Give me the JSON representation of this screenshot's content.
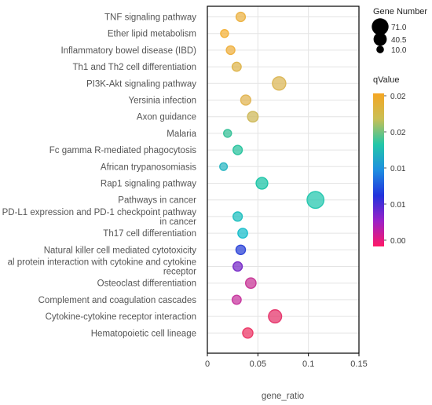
{
  "chart_data": {
    "type": "scatter",
    "title": "",
    "xlabel": "gene_ratio",
    "ylabel": "",
    "xlim": [
      0,
      0.15
    ],
    "x_ticks": [
      0,
      0.05,
      0.1,
      0.15
    ],
    "x_tick_labels": [
      "0",
      "0.05",
      "0.1",
      "0.15"
    ],
    "grid": true,
    "categories": [
      "TNF signaling pathway",
      "Ether lipid metabolism",
      "Inflammatory bowel disease (IBD)",
      "Th1 and Th2 cell differentiation",
      "PI3K-Akt signaling pathway",
      "Yersinia infection",
      "Axon guidance",
      "Malaria",
      "Fc gamma R-mediated phagocytosis",
      "African trypanosomiasis",
      "Rap1 signaling pathway",
      "Pathways in cancer",
      "PD-L1 expression and PD-1 checkpoint pathway in cancer",
      "Th17 cell differentiation",
      "Natural killer cell mediated cytotoxicity",
      "Viral protein interaction with cytokine and cytokine receptor",
      "Osteoclast differentiation",
      "Complement and coagulation cascades",
      "Cytokine-cytokine receptor interaction",
      "Hematopoietic cell lineage"
    ],
    "category_labels": [
      [
        "TNF signaling pathway"
      ],
      [
        "Ether lipid metabolism"
      ],
      [
        "Inflammatory bowel disease (IBD)"
      ],
      [
        "Th1 and Th2 cell differentiation"
      ],
      [
        "PI3K-Akt signaling pathway"
      ],
      [
        "Yersinia infection"
      ],
      [
        "Axon guidance"
      ],
      [
        "Malaria"
      ],
      [
        "Fc gamma R-mediated phagocytosis"
      ],
      [
        "African trypanosomiasis"
      ],
      [
        "Rap1 signaling pathway"
      ],
      [
        "Pathways in cancer"
      ],
      [
        "PD-L1 expression and PD-1 checkpoint pathway",
        "in cancer"
      ],
      [
        "Th17 cell differentiation"
      ],
      [
        "Natural killer cell mediated cytotoxicity"
      ],
      [
        "al protein interaction with cytokine and cytokine",
        "receptor"
      ],
      [
        "Osteoclast differentiation"
      ],
      [
        "Complement and coagulation cascades"
      ],
      [
        "Cytokine-cytokine receptor interaction"
      ],
      [
        "Hematopoietic cell lineage"
      ]
    ],
    "points": [
      {
        "x": 0.033,
        "gene_number": 17,
        "color": "#ecb448"
      },
      {
        "x": 0.017,
        "gene_number": 11,
        "color": "#f4b33c"
      },
      {
        "x": 0.023,
        "gene_number": 14,
        "color": "#efb243"
      },
      {
        "x": 0.029,
        "gene_number": 16,
        "color": "#dfb752"
      },
      {
        "x": 0.071,
        "gene_number": 42,
        "color": "#dcb85a"
      },
      {
        "x": 0.038,
        "gene_number": 21,
        "color": "#e2b656"
      },
      {
        "x": 0.045,
        "gene_number": 24,
        "color": "#cfba5c"
      },
      {
        "x": 0.02,
        "gene_number": 11,
        "color": "#39c29a"
      },
      {
        "x": 0.03,
        "gene_number": 17,
        "color": "#2ec4a0"
      },
      {
        "x": 0.016,
        "gene_number": 10,
        "color": "#2fb8c4"
      },
      {
        "x": 0.054,
        "gene_number": 30,
        "color": "#1fc6a8"
      },
      {
        "x": 0.107,
        "gene_number": 71,
        "color": "#28c8b0"
      },
      {
        "x": 0.03,
        "gene_number": 17,
        "color": "#24c0c0"
      },
      {
        "x": 0.035,
        "gene_number": 19,
        "color": "#1cbfcc"
      },
      {
        "x": 0.033,
        "gene_number": 18,
        "color": "#2f46d8"
      },
      {
        "x": 0.03,
        "gene_number": 17,
        "color": "#7a2fc8"
      },
      {
        "x": 0.043,
        "gene_number": 23,
        "color": "#c83a98"
      },
      {
        "x": 0.029,
        "gene_number": 16,
        "color": "#c83aa0"
      },
      {
        "x": 0.067,
        "gene_number": 40,
        "color": "#e6386e"
      },
      {
        "x": 0.04,
        "gene_number": 22,
        "color": "#ec3a68"
      }
    ],
    "size_legend": {
      "title": "Gene Number",
      "items": [
        {
          "label": "71.0",
          "value": 71
        },
        {
          "label": "40.5",
          "value": 40.5
        },
        {
          "label": "10.0",
          "value": 10
        }
      ]
    },
    "color_legend": {
      "title": "qValue",
      "tick_labels": [
        "0.02",
        "0.02",
        "0.01",
        "0.01",
        "0.00"
      ],
      "gradient_stops": [
        "#f5a623",
        "#c9bf55",
        "#22c7a8",
        "#1e8fe0",
        "#2233dd",
        "#9b22c8",
        "#ff1a66"
      ]
    }
  }
}
